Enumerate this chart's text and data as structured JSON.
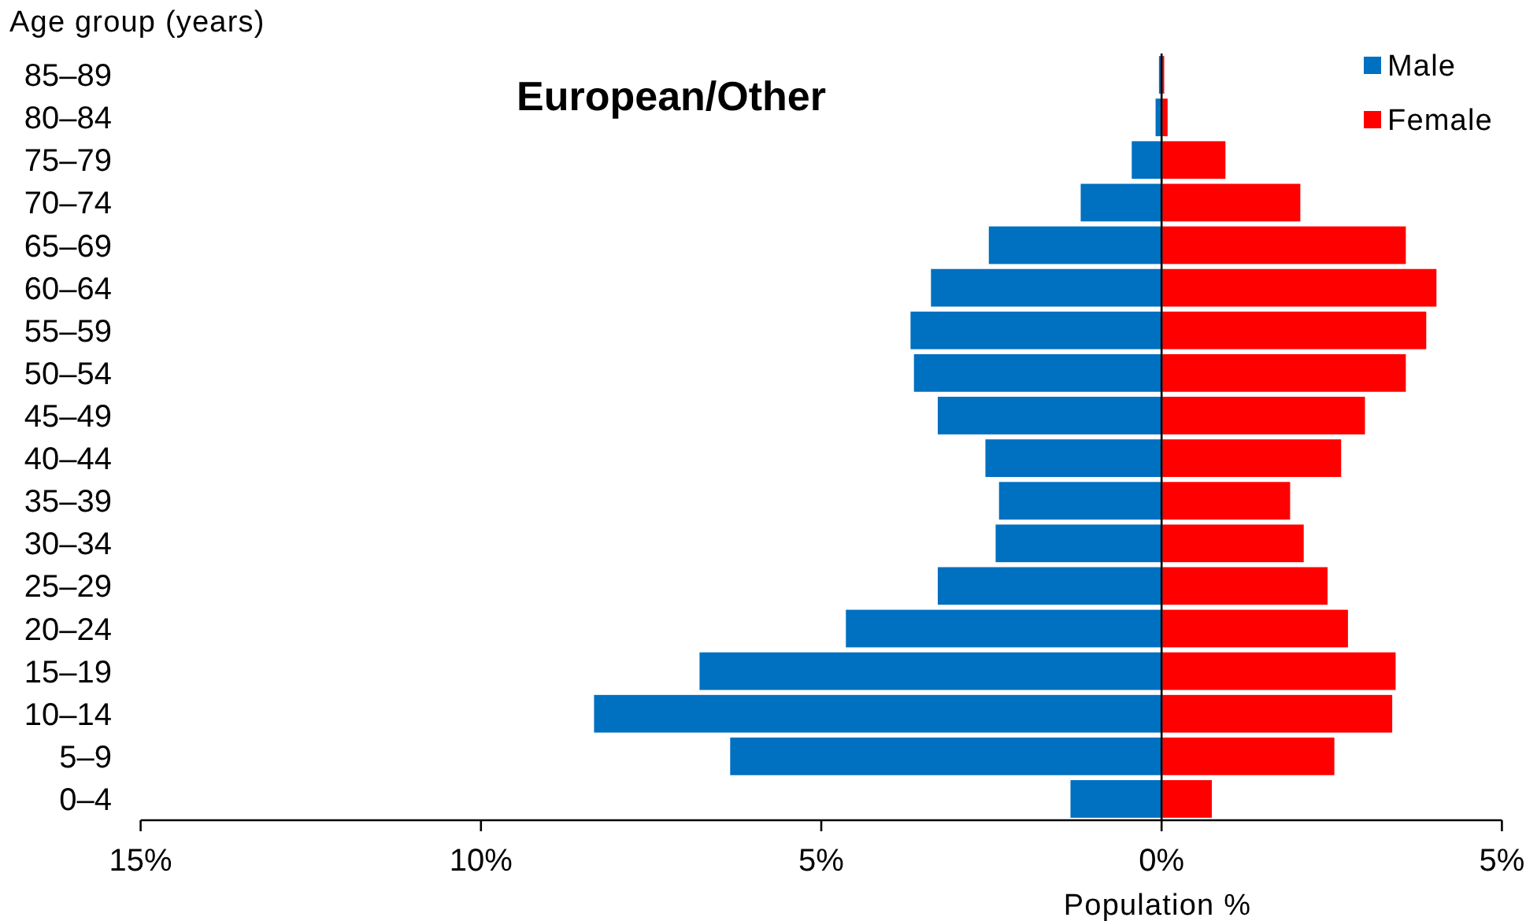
{
  "chart_data": {
    "type": "bar",
    "orientation": "horizontal",
    "stacked": true,
    "title": "European/Other",
    "xlabel": "Population %",
    "ylabel": "Age group (years)",
    "categories": [
      "85–89",
      "80–84",
      "75–79",
      "70–74",
      "65–69",
      "60–64",
      "55–59",
      "50–54",
      "45–49",
      "40–44",
      "35–39",
      "30–34",
      "25–29",
      "20–24",
      "15–19",
      "10–14",
      "5–9",
      "0–4"
    ],
    "series": [
      {
        "name": "Male",
        "color": "#0070c0",
        "values": [
          -0.05,
          -0.1,
          -0.45,
          -1.2,
          -2.55,
          -3.4,
          -3.7,
          -3.65,
          -3.3,
          -2.6,
          -2.4,
          -2.45,
          -3.3,
          -4.65,
          -6.8,
          -8.35,
          -6.35,
          -1.35
        ]
      },
      {
        "name": "Female",
        "color": "#ff0000",
        "values": [
          0.05,
          0.1,
          0.95,
          2.05,
          3.6,
          4.05,
          3.9,
          3.6,
          3.0,
          2.65,
          1.9,
          2.1,
          2.45,
          2.75,
          3.45,
          3.4,
          2.55,
          0.75
        ]
      }
    ],
    "xlim": [
      -15,
      5
    ],
    "xticks": [
      {
        "value": -15,
        "label": "15%"
      },
      {
        "value": -10,
        "label": "10%"
      },
      {
        "value": -5,
        "label": "5%"
      },
      {
        "value": 0,
        "label": "0%"
      },
      {
        "value": 5,
        "label": "5%"
      }
    ],
    "legend": "top right"
  }
}
